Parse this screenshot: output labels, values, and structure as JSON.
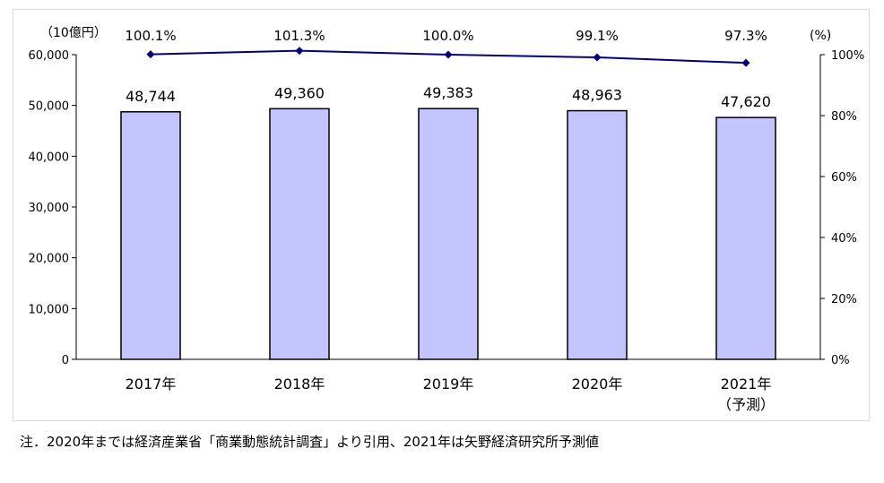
{
  "chart_data": {
    "type": "bar",
    "categories": [
      "2017年",
      "2018年",
      "2019年",
      "2020年",
      "2021年"
    ],
    "category_sublabels": [
      "",
      "",
      "",
      "",
      "（予測）"
    ],
    "series": [
      {
        "values": [
          48744,
          49360,
          49383,
          48963,
          47620
        ],
        "kind": "bar",
        "axis": "left",
        "data_labels": [
          "48,744",
          "49,360",
          "49,383",
          "48,963",
          "47,620"
        ]
      },
      {
        "values": [
          100.1,
          101.3,
          100.0,
          99.1,
          97.3
        ],
        "kind": "line",
        "axis": "right",
        "data_labels": [
          "100.1%",
          "101.3%",
          "100.0%",
          "99.1%",
          "97.3%"
        ]
      }
    ],
    "y_left": {
      "unit_label": "（10億円）",
      "ylim": [
        0,
        60000
      ],
      "ticks": [
        0,
        10000,
        20000,
        30000,
        40000,
        50000,
        60000
      ],
      "tick_labels": [
        "0",
        "10,000",
        "20,000",
        "30,000",
        "40,000",
        "50,000",
        "60,000"
      ]
    },
    "y_right": {
      "unit_label": "(%)",
      "ylim": [
        0,
        100
      ],
      "ticks": [
        0,
        20,
        40,
        60,
        80,
        100
      ],
      "tick_labels": [
        "0%",
        "20%",
        "40%",
        "60%",
        "80%",
        "100%"
      ]
    },
    "colors": {
      "bar_fill": "#c4c4ff",
      "bar_stroke": "#000000",
      "line": "#000080",
      "marker": "#000080"
    },
    "grid": false,
    "legend": "none"
  },
  "footnote": "注．2020年までは経済産業省「商業動態統計調査」より引用、2021年は矢野経済研究所予測値"
}
